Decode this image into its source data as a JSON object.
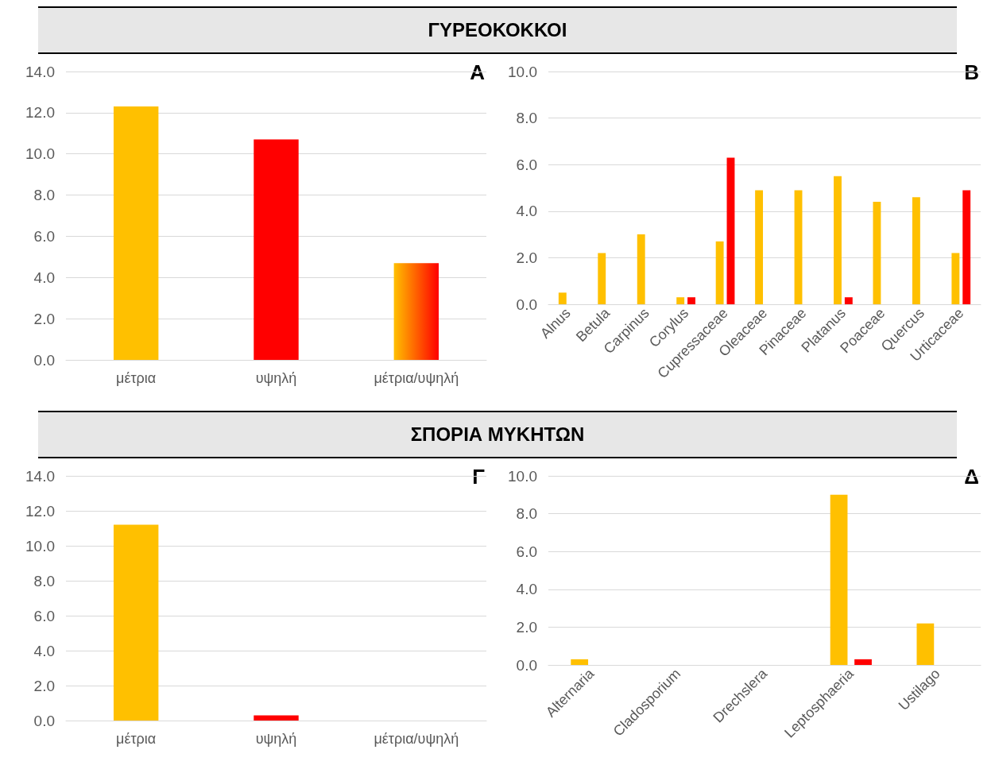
{
  "chart_data": [
    {
      "type": "bar",
      "title": "ΓΥΡΕΟΚΟΚΚΟΙ",
      "annotations": [
        "Α"
      ],
      "categories": [
        "μέτρια",
        "υψηλή",
        "μέτρια/υψηλή"
      ],
      "values": [
        12.3,
        10.7,
        4.7
      ],
      "colors": [
        "#ffc000",
        "#ff0000",
        "#ff6000"
      ],
      "ylim": [
        0,
        14
      ],
      "yticks": [
        {
          "value": 0,
          "label": "0.0"
        },
        {
          "value": 2,
          "label": "2.0"
        },
        {
          "value": 4,
          "label": "4.0"
        },
        {
          "value": 6,
          "label": "6.0"
        },
        {
          "value": 8,
          "label": "8.0"
        },
        {
          "value": 10,
          "label": "10.0"
        },
        {
          "value": 12,
          "label": "12.0"
        },
        {
          "value": 14,
          "label": "14.0"
        }
      ],
      "grid": "y"
    },
    {
      "type": "bar",
      "annotations": [
        "Β"
      ],
      "categories": [
        "Alnus",
        "Betula",
        "Carpinus",
        "Corylus",
        "Cupressaceae",
        "Oleaceae",
        "Pinaceae",
        "Platanus",
        "Poaceae",
        "Quercus",
        "Urticaceae"
      ],
      "series": [
        {
          "color": "#ffc000",
          "values": [
            0.5,
            2.2,
            3.0,
            0.3,
            2.7,
            4.9,
            4.9,
            5.5,
            4.4,
            4.6,
            2.2
          ]
        },
        {
          "color": "#ff0000",
          "values": [
            0,
            0,
            0,
            0.3,
            6.3,
            0,
            0,
            0.3,
            0,
            0,
            4.9
          ]
        }
      ],
      "ylim": [
        0,
        10
      ],
      "yticks": [
        {
          "value": 0,
          "label": "0.0"
        },
        {
          "value": 2,
          "label": "2.0"
        },
        {
          "value": 4,
          "label": "4.0"
        },
        {
          "value": 6,
          "label": "6.0"
        },
        {
          "value": 8,
          "label": "8.0"
        },
        {
          "value": 10,
          "label": "10.0"
        }
      ],
      "grid": "y"
    },
    {
      "type": "bar",
      "title": "ΣΠΟΡΙΑ ΜΥΚΗΤΩΝ",
      "annotations": [
        "Γ"
      ],
      "categories": [
        "μέτρια",
        "υψηλή",
        "μέτρια/υψηλή"
      ],
      "values": [
        11.2,
        0.3,
        0
      ],
      "colors": [
        "#ffc000",
        "#ff0000",
        "#ff6000"
      ],
      "ylim": [
        0,
        14
      ],
      "yticks": [
        {
          "value": 0,
          "label": "0.0"
        },
        {
          "value": 2,
          "label": "2.0"
        },
        {
          "value": 4,
          "label": "4.0"
        },
        {
          "value": 6,
          "label": "6.0"
        },
        {
          "value": 8,
          "label": "8.0"
        },
        {
          "value": 10,
          "label": "10.0"
        },
        {
          "value": 12,
          "label": "12.0"
        },
        {
          "value": 14,
          "label": "14.0"
        }
      ],
      "grid": "y"
    },
    {
      "type": "bar",
      "annotations": [
        "Δ"
      ],
      "categories": [
        "Alternaria",
        "Cladosporium",
        "Drechslera",
        "Leptosphaeria",
        "Ustilago"
      ],
      "series": [
        {
          "color": "#ffc000",
          "values": [
            0.3,
            0,
            0,
            9.0,
            2.2
          ]
        },
        {
          "color": "#ff0000",
          "values": [
            0,
            0,
            0,
            0.3,
            0
          ]
        }
      ],
      "ylim": [
        0,
        10
      ],
      "yticks": [
        {
          "value": 0,
          "label": "0.0"
        },
        {
          "value": 2,
          "label": "2.0"
        },
        {
          "value": 4,
          "label": "4.0"
        },
        {
          "value": 6,
          "label": "6.0"
        },
        {
          "value": 8,
          "label": "8.0"
        },
        {
          "value": 10,
          "label": "10.0"
        }
      ],
      "grid": "y"
    }
  ]
}
